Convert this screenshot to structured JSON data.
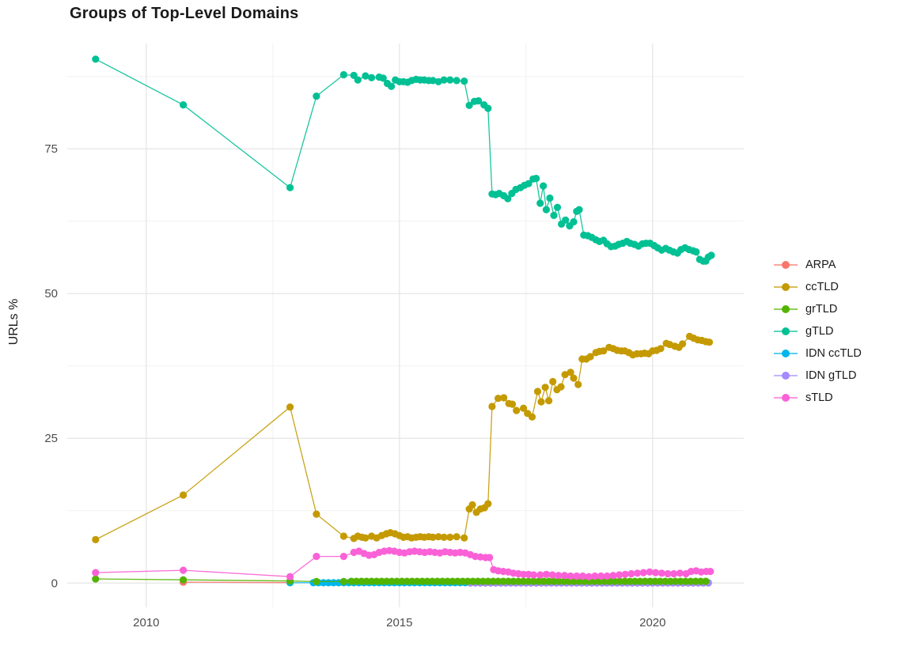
{
  "chart_data": {
    "type": "line",
    "title": "Groups of Top-Level Domains",
    "xlabel": "",
    "ylabel": "URLs %",
    "x_ticks": [
      2010,
      2015,
      2020
    ],
    "x_minor_gridlines": [
      2012.5,
      2017.5
    ],
    "y_ticks": [
      0,
      25,
      50,
      75
    ],
    "y_minor_gridlines": [
      12.5,
      37.5,
      62.5,
      87.5
    ],
    "xlim": [
      2008.44,
      2021.8
    ],
    "ylim": [
      -4.2,
      93.2
    ],
    "grid": "major and minor, light gray on white",
    "legend_position": "right",
    "marker": "filled circle with connecting line",
    "series": [
      {
        "name": "ARPA",
        "color": "#F8766D",
        "points": [
          [
            2010.73,
            0.15
          ],
          [
            2012.84,
            0.08
          ]
        ]
      },
      {
        "name": "ccTLD",
        "color": "#C49A00",
        "points": [
          [
            2009.0,
            7.5
          ],
          [
            2010.73,
            15.2
          ],
          [
            2012.84,
            30.4
          ],
          [
            2013.36,
            11.9
          ],
          [
            2013.9,
            8.1
          ],
          [
            2014.1,
            7.7
          ],
          [
            2014.18,
            8.1
          ],
          [
            2014.26,
            7.9
          ],
          [
            2014.33,
            7.8
          ],
          [
            2014.45,
            8.1
          ],
          [
            2014.55,
            7.8
          ],
          [
            2014.65,
            8.2
          ],
          [
            2014.74,
            8.5
          ],
          [
            2014.82,
            8.7
          ],
          [
            2014.91,
            8.5
          ],
          [
            2015.0,
            8.2
          ],
          [
            2015.08,
            7.9
          ],
          [
            2015.16,
            8.0
          ],
          [
            2015.24,
            7.8
          ],
          [
            2015.33,
            7.9
          ],
          [
            2015.41,
            8.0
          ],
          [
            2015.49,
            7.9
          ],
          [
            2015.58,
            8.0
          ],
          [
            2015.66,
            7.9
          ],
          [
            2015.77,
            8.0
          ],
          [
            2015.88,
            7.9
          ],
          [
            2016.0,
            7.9
          ],
          [
            2016.13,
            8.0
          ],
          [
            2016.28,
            7.8
          ],
          [
            2016.38,
            12.8
          ],
          [
            2016.44,
            13.5
          ],
          [
            2016.52,
            12.2
          ],
          [
            2016.6,
            12.8
          ],
          [
            2016.68,
            13.0
          ],
          [
            2016.75,
            13.7
          ],
          [
            2016.83,
            30.5
          ],
          [
            2016.95,
            31.9
          ],
          [
            2017.06,
            32.0
          ],
          [
            2017.16,
            31.0
          ],
          [
            2017.23,
            30.9
          ],
          [
            2017.31,
            29.8
          ],
          [
            2017.45,
            30.2
          ],
          [
            2017.53,
            29.3
          ],
          [
            2017.62,
            28.7
          ],
          [
            2017.73,
            33.1
          ],
          [
            2017.8,
            31.3
          ],
          [
            2017.88,
            33.8
          ],
          [
            2017.95,
            31.5
          ],
          [
            2018.03,
            34.8
          ],
          [
            2018.11,
            33.4
          ],
          [
            2018.19,
            33.9
          ],
          [
            2018.27,
            36.0
          ],
          [
            2018.38,
            36.4
          ],
          [
            2018.44,
            35.4
          ],
          [
            2018.53,
            34.3
          ],
          [
            2018.61,
            38.7
          ],
          [
            2018.69,
            38.7
          ],
          [
            2018.77,
            39.1
          ],
          [
            2018.88,
            39.8
          ],
          [
            2018.95,
            40.0
          ],
          [
            2019.03,
            40.1
          ],
          [
            2019.14,
            40.7
          ],
          [
            2019.22,
            40.5
          ],
          [
            2019.3,
            40.2
          ],
          [
            2019.38,
            40.1
          ],
          [
            2019.45,
            40.1
          ],
          [
            2019.53,
            39.8
          ],
          [
            2019.61,
            39.4
          ],
          [
            2019.69,
            39.6
          ],
          [
            2019.77,
            39.6
          ],
          [
            2019.84,
            39.7
          ],
          [
            2019.92,
            39.6
          ],
          [
            2020.0,
            40.1
          ],
          [
            2020.08,
            40.2
          ],
          [
            2020.16,
            40.5
          ],
          [
            2020.27,
            41.4
          ],
          [
            2020.34,
            41.2
          ],
          [
            2020.44,
            40.9
          ],
          [
            2020.52,
            40.7
          ],
          [
            2020.59,
            41.3
          ],
          [
            2020.73,
            42.6
          ],
          [
            2020.81,
            42.3
          ],
          [
            2020.89,
            42.0
          ],
          [
            2020.97,
            41.9
          ],
          [
            2021.05,
            41.7
          ],
          [
            2021.12,
            41.6
          ]
        ]
      },
      {
        "name": "grTLD",
        "color": "#53B400",
        "points": [
          [
            2009.0,
            0.7
          ],
          [
            2010.73,
            0.55
          ],
          [
            2012.84,
            0.35
          ],
          [
            2013.36,
            0.25
          ],
          [
            2013.9,
            0.25
          ]
        ],
        "segments": [
          {
            "from": 2014.05,
            "to": 2021.12,
            "step": 0.1,
            "value": 0.3
          }
        ]
      },
      {
        "name": "gTLD",
        "color": "#00C094",
        "points": [
          [
            2009.0,
            90.5
          ],
          [
            2010.73,
            82.6
          ],
          [
            2012.84,
            68.3
          ],
          [
            2013.36,
            84.1
          ],
          [
            2013.9,
            87.8
          ],
          [
            2014.1,
            87.7
          ],
          [
            2014.18,
            86.9
          ],
          [
            2014.33,
            87.6
          ],
          [
            2014.45,
            87.3
          ],
          [
            2014.6,
            87.4
          ],
          [
            2014.68,
            87.2
          ],
          [
            2014.76,
            86.3
          ],
          [
            2014.84,
            85.8
          ],
          [
            2014.92,
            86.9
          ],
          [
            2015.0,
            86.6
          ],
          [
            2015.08,
            86.6
          ],
          [
            2015.16,
            86.5
          ],
          [
            2015.24,
            86.8
          ],
          [
            2015.33,
            87.0
          ],
          [
            2015.41,
            86.9
          ],
          [
            2015.49,
            86.9
          ],
          [
            2015.58,
            86.8
          ],
          [
            2015.66,
            86.8
          ],
          [
            2015.77,
            86.6
          ],
          [
            2015.88,
            86.9
          ],
          [
            2016.0,
            86.9
          ],
          [
            2016.13,
            86.8
          ],
          [
            2016.28,
            86.7
          ],
          [
            2016.38,
            82.5
          ],
          [
            2016.48,
            83.2
          ],
          [
            2016.56,
            83.3
          ],
          [
            2016.67,
            82.6
          ],
          [
            2016.75,
            82.0
          ],
          [
            2016.83,
            67.2
          ],
          [
            2016.9,
            67.1
          ],
          [
            2016.97,
            67.3
          ],
          [
            2017.06,
            66.9
          ],
          [
            2017.14,
            66.4
          ],
          [
            2017.22,
            67.3
          ],
          [
            2017.3,
            68.0
          ],
          [
            2017.39,
            68.3
          ],
          [
            2017.47,
            68.7
          ],
          [
            2017.55,
            69.0
          ],
          [
            2017.64,
            69.8
          ],
          [
            2017.7,
            69.9
          ],
          [
            2017.78,
            65.6
          ],
          [
            2017.84,
            68.6
          ],
          [
            2017.9,
            64.5
          ],
          [
            2017.97,
            66.5
          ],
          [
            2018.05,
            63.5
          ],
          [
            2018.12,
            64.9
          ],
          [
            2018.2,
            62.0
          ],
          [
            2018.28,
            62.7
          ],
          [
            2018.36,
            61.7
          ],
          [
            2018.44,
            62.4
          ],
          [
            2018.5,
            64.2
          ],
          [
            2018.55,
            64.5
          ],
          [
            2018.64,
            60.1
          ],
          [
            2018.72,
            60.0
          ],
          [
            2018.8,
            59.7
          ],
          [
            2018.88,
            59.3
          ],
          [
            2018.95,
            59.0
          ],
          [
            2019.03,
            59.2
          ],
          [
            2019.1,
            58.6
          ],
          [
            2019.18,
            58.1
          ],
          [
            2019.26,
            58.2
          ],
          [
            2019.33,
            58.5
          ],
          [
            2019.41,
            58.7
          ],
          [
            2019.49,
            59.0
          ],
          [
            2019.56,
            58.7
          ],
          [
            2019.64,
            58.5
          ],
          [
            2019.72,
            58.2
          ],
          [
            2019.8,
            58.6
          ],
          [
            2019.87,
            58.7
          ],
          [
            2019.95,
            58.7
          ],
          [
            2020.03,
            58.3
          ],
          [
            2020.1,
            57.9
          ],
          [
            2020.18,
            57.5
          ],
          [
            2020.26,
            57.8
          ],
          [
            2020.33,
            57.5
          ],
          [
            2020.41,
            57.2
          ],
          [
            2020.49,
            57.0
          ],
          [
            2020.56,
            57.6
          ],
          [
            2020.64,
            57.9
          ],
          [
            2020.72,
            57.6
          ],
          [
            2020.8,
            57.4
          ],
          [
            2020.86,
            57.2
          ],
          [
            2020.93,
            55.9
          ],
          [
            2021.0,
            55.6
          ],
          [
            2021.05,
            55.6
          ],
          [
            2021.1,
            56.3
          ],
          [
            2021.16,
            56.6
          ]
        ]
      },
      {
        "name": "IDN ccTLD",
        "color": "#00B6EB",
        "points": [
          [
            2012.84,
            0.05
          ]
        ],
        "segments": [
          {
            "from": 2013.3,
            "to": 2021.12,
            "step": 0.1,
            "value": 0.05
          }
        ]
      },
      {
        "name": "IDN gTLD",
        "color": "#A58AFF",
        "points": [],
        "segments": [
          {
            "from": 2016.4,
            "to": 2021.12,
            "step": 0.1,
            "value": 0.0
          }
        ]
      },
      {
        "name": "sTLD",
        "color": "#FB61D7",
        "points": [
          [
            2009.0,
            1.8
          ],
          [
            2010.73,
            2.2
          ],
          [
            2012.84,
            1.1
          ],
          [
            2013.36,
            4.6
          ],
          [
            2013.9,
            4.6
          ],
          [
            2014.1,
            5.3
          ],
          [
            2014.2,
            5.5
          ],
          [
            2014.3,
            5.1
          ],
          [
            2014.4,
            4.8
          ],
          [
            2014.5,
            4.9
          ],
          [
            2014.6,
            5.3
          ],
          [
            2014.7,
            5.5
          ],
          [
            2014.8,
            5.6
          ],
          [
            2014.9,
            5.5
          ],
          [
            2015.0,
            5.3
          ],
          [
            2015.1,
            5.2
          ],
          [
            2015.2,
            5.4
          ],
          [
            2015.3,
            5.5
          ],
          [
            2015.4,
            5.4
          ],
          [
            2015.5,
            5.3
          ],
          [
            2015.6,
            5.4
          ],
          [
            2015.7,
            5.3
          ],
          [
            2015.8,
            5.2
          ],
          [
            2015.9,
            5.4
          ],
          [
            2016.0,
            5.3
          ],
          [
            2016.1,
            5.2
          ],
          [
            2016.2,
            5.3
          ],
          [
            2016.3,
            5.2
          ],
          [
            2016.4,
            4.9
          ],
          [
            2016.5,
            4.6
          ],
          [
            2016.6,
            4.5
          ],
          [
            2016.7,
            4.4
          ],
          [
            2016.78,
            4.4
          ],
          [
            2016.86,
            2.3
          ],
          [
            2016.95,
            2.1
          ],
          [
            2017.05,
            2.0
          ],
          [
            2017.15,
            1.9
          ],
          [
            2017.25,
            1.7
          ],
          [
            2017.35,
            1.6
          ],
          [
            2017.45,
            1.5
          ],
          [
            2017.55,
            1.5
          ],
          [
            2017.65,
            1.4
          ],
          [
            2017.78,
            1.4
          ],
          [
            2017.9,
            1.5
          ],
          [
            2018.02,
            1.4
          ],
          [
            2018.14,
            1.3
          ],
          [
            2018.26,
            1.3
          ],
          [
            2018.38,
            1.2
          ],
          [
            2018.5,
            1.2
          ],
          [
            2018.62,
            1.2
          ],
          [
            2018.74,
            1.1
          ],
          [
            2018.86,
            1.2
          ],
          [
            2018.98,
            1.2
          ],
          [
            2019.1,
            1.2
          ],
          [
            2019.22,
            1.3
          ],
          [
            2019.34,
            1.4
          ],
          [
            2019.46,
            1.5
          ],
          [
            2019.58,
            1.6
          ],
          [
            2019.7,
            1.7
          ],
          [
            2019.82,
            1.8
          ],
          [
            2019.94,
            1.9
          ],
          [
            2020.06,
            1.8
          ],
          [
            2020.18,
            1.7
          ],
          [
            2020.3,
            1.6
          ],
          [
            2020.42,
            1.6
          ],
          [
            2020.54,
            1.7
          ],
          [
            2020.66,
            1.6
          ],
          [
            2020.76,
            2.0
          ],
          [
            2020.86,
            2.1
          ],
          [
            2020.96,
            1.9
          ],
          [
            2021.06,
            2.0
          ],
          [
            2021.14,
            2.0
          ]
        ]
      }
    ]
  }
}
